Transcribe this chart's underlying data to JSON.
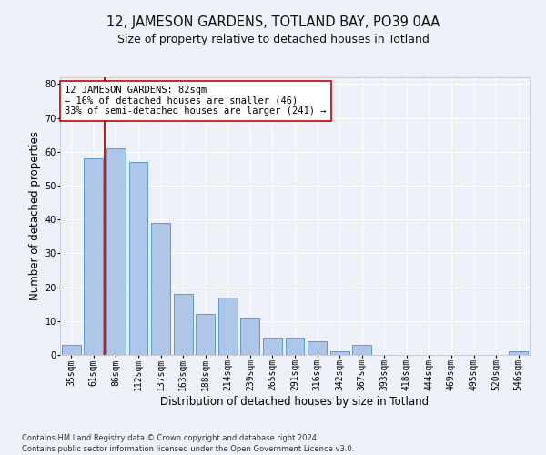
{
  "title": "12, JAMESON GARDENS, TOTLAND BAY, PO39 0AA",
  "subtitle": "Size of property relative to detached houses in Totland",
  "xlabel": "Distribution of detached houses by size in Totland",
  "ylabel": "Number of detached properties",
  "categories": [
    "35sqm",
    "61sqm",
    "86sqm",
    "112sqm",
    "137sqm",
    "163sqm",
    "188sqm",
    "214sqm",
    "239sqm",
    "265sqm",
    "291sqm",
    "316sqm",
    "342sqm",
    "367sqm",
    "393sqm",
    "418sqm",
    "444sqm",
    "469sqm",
    "495sqm",
    "520sqm",
    "546sqm"
  ],
  "values": [
    3,
    58,
    61,
    57,
    39,
    18,
    12,
    17,
    11,
    5,
    5,
    4,
    1,
    3,
    0,
    0,
    0,
    0,
    0,
    0,
    1
  ],
  "bar_color": "#aec6e8",
  "bar_edge_color": "#5b9bd5",
  "vline_color": "#cc0000",
  "vline_x": 1.5,
  "annotation_text": "12 JAMESON GARDENS: 82sqm\n← 16% of detached houses are smaller (46)\n83% of semi-detached houses are larger (241) →",
  "annotation_box_color": "#ffffff",
  "annotation_box_edge": "#cc0000",
  "ylim_max": 82,
  "yticks": [
    0,
    10,
    20,
    30,
    40,
    50,
    60,
    70,
    80
  ],
  "footer": "Contains HM Land Registry data © Crown copyright and database right 2024.\nContains public sector information licensed under the Open Government Licence v3.0.",
  "bg_color": "#eef2f8",
  "grid_color": "#ffffff",
  "title_fontsize": 10.5,
  "subtitle_fontsize": 9,
  "axis_label_fontsize": 8.5,
  "tick_fontsize": 7,
  "annotation_fontsize": 7.5,
  "footer_fontsize": 6
}
